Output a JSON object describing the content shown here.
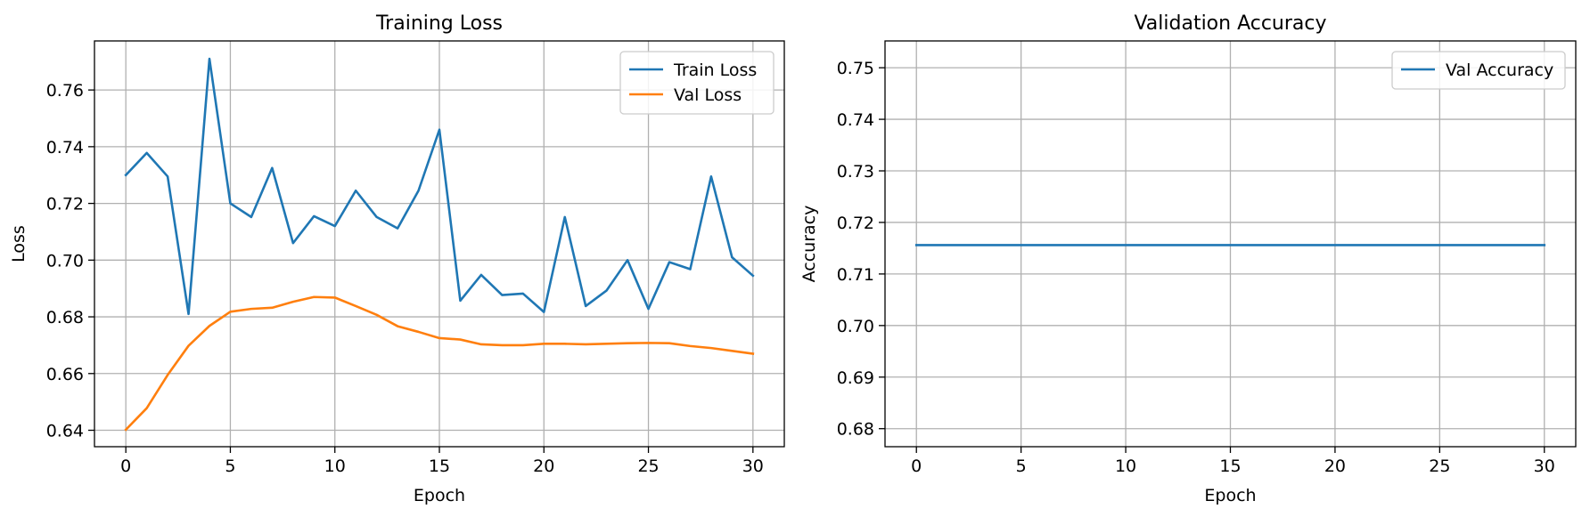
{
  "chart_data": [
    {
      "type": "line",
      "title": "Training Loss",
      "xlabel": "Epoch",
      "ylabel": "Loss",
      "xlim": [
        -1.5,
        31.5
      ],
      "ylim": [
        0.6342,
        0.7773
      ],
      "xticks": [
        0,
        5,
        10,
        15,
        20,
        25,
        30
      ],
      "yticks": [
        0.64,
        0.66,
        0.68,
        0.7,
        0.72,
        0.74,
        0.76
      ],
      "xtick_labels": [
        "0",
        "5",
        "10",
        "15",
        "20",
        "25",
        "30"
      ],
      "ytick_labels": [
        "0.64",
        "0.66",
        "0.68",
        "0.70",
        "0.72",
        "0.74",
        "0.76"
      ],
      "grid": true,
      "legend_position": "top-right",
      "x": [
        0,
        1,
        2,
        3,
        4,
        5,
        6,
        7,
        8,
        9,
        10,
        11,
        12,
        13,
        14,
        15,
        16,
        17,
        18,
        19,
        20,
        21,
        22,
        23,
        24,
        25,
        26,
        27,
        28,
        29,
        30
      ],
      "series": [
        {
          "name": "Train Loss",
          "color": "#1f77b4",
          "values": [
            0.73,
            0.7378,
            0.7295,
            0.681,
            0.771,
            0.72,
            0.7152,
            0.7325,
            0.706,
            0.7155,
            0.712,
            0.7245,
            0.7152,
            0.7112,
            0.7245,
            0.746,
            0.6857,
            0.6948,
            0.6877,
            0.6882,
            0.6817,
            0.7152,
            0.6838,
            0.6893,
            0.7,
            0.6828,
            0.6993,
            0.6968,
            0.7295,
            0.701,
            0.6945
          ]
        },
        {
          "name": "Val Loss",
          "color": "#ff7f0e",
          "values": [
            0.6402,
            0.6478,
            0.6595,
            0.6698,
            0.6768,
            0.6818,
            0.6828,
            0.6832,
            0.6853,
            0.687,
            0.6868,
            0.6838,
            0.6807,
            0.6767,
            0.6747,
            0.6725,
            0.672,
            0.6703,
            0.67,
            0.67,
            0.6705,
            0.6705,
            0.6703,
            0.6705,
            0.6707,
            0.6708,
            0.6707,
            0.6697,
            0.669,
            0.668,
            0.667
          ]
        }
      ]
    },
    {
      "type": "line",
      "title": "Validation Accuracy",
      "xlabel": "Epoch",
      "ylabel": "Accuracy",
      "xlim": [
        -1.5,
        31.5
      ],
      "ylim": [
        0.6765,
        0.7552
      ],
      "xticks": [
        0,
        5,
        10,
        15,
        20,
        25,
        30
      ],
      "yticks": [
        0.68,
        0.69,
        0.7,
        0.71,
        0.72,
        0.73,
        0.74,
        0.75
      ],
      "xtick_labels": [
        "0",
        "5",
        "10",
        "15",
        "20",
        "25",
        "30"
      ],
      "ytick_labels": [
        "0.68",
        "0.69",
        "0.70",
        "0.71",
        "0.72",
        "0.73",
        "0.74",
        "0.75"
      ],
      "grid": true,
      "legend_position": "top-right",
      "x": [
        0,
        1,
        2,
        3,
        4,
        5,
        6,
        7,
        8,
        9,
        10,
        11,
        12,
        13,
        14,
        15,
        16,
        17,
        18,
        19,
        20,
        21,
        22,
        23,
        24,
        25,
        26,
        27,
        28,
        29,
        30
      ],
      "series": [
        {
          "name": "Val Accuracy",
          "color": "#1f77b4",
          "values": [
            0.7156,
            0.7156,
            0.7156,
            0.7156,
            0.7156,
            0.7156,
            0.7156,
            0.7156,
            0.7156,
            0.7156,
            0.7156,
            0.7156,
            0.7156,
            0.7156,
            0.7156,
            0.7156,
            0.7156,
            0.7156,
            0.7156,
            0.7156,
            0.7156,
            0.7156,
            0.7156,
            0.7156,
            0.7156,
            0.7156,
            0.7156,
            0.7156,
            0.7156,
            0.7156,
            0.7156
          ]
        }
      ]
    }
  ]
}
